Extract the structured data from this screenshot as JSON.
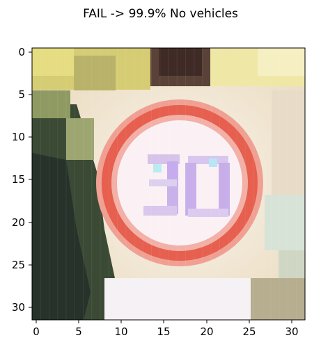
{
  "title": "FAIL -> 99.9% No vehicles",
  "image": {
    "description_name": "speed-limit-30-sign",
    "grid": 32,
    "x_ticks": [
      "0",
      "5",
      "10",
      "15",
      "20",
      "25",
      "30"
    ],
    "y_ticks": [
      "0",
      "5",
      "10",
      "15",
      "20",
      "25",
      "30"
    ]
  },
  "colors": {
    "ring": "#e8604f",
    "inner": "#fbf1f5",
    "digits": "#c7a9e6",
    "foliage_dark": "#2d3b2a",
    "foliage_yellow": "#d8cf6a",
    "sky_light": "#f3eaa8"
  }
}
